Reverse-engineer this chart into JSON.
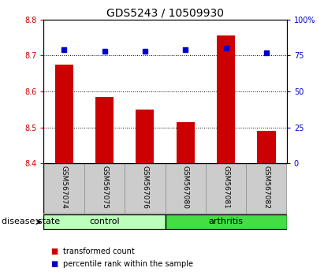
{
  "title": "GDS5243 / 10509930",
  "samples": [
    "GSM567074",
    "GSM567075",
    "GSM567076",
    "GSM567080",
    "GSM567081",
    "GSM567082"
  ],
  "transformed_counts": [
    8.675,
    8.585,
    8.55,
    8.515,
    8.755,
    8.49
  ],
  "percentile_ranks": [
    79,
    78,
    78,
    79,
    80,
    77
  ],
  "ylim_left": [
    8.4,
    8.8
  ],
  "ylim_right": [
    0,
    100
  ],
  "yticks_left": [
    8.4,
    8.5,
    8.6,
    8.7,
    8.8
  ],
  "yticks_right": [
    0,
    25,
    50,
    75,
    100
  ],
  "ytick_labels_right": [
    "0",
    "25",
    "50",
    "75",
    "100%"
  ],
  "bar_color": "#cc0000",
  "dot_color": "#0000cc",
  "bar_bottom": 8.4,
  "groups": [
    {
      "label": "control",
      "n": 3,
      "color": "#bbffbb"
    },
    {
      "label": "arthritis",
      "n": 3,
      "color": "#44dd44"
    }
  ],
  "disease_state_label": "disease state",
  "legend_items": [
    {
      "label": "transformed count",
      "color": "#cc0000"
    },
    {
      "label": "percentile rank within the sample",
      "color": "#0000cc"
    }
  ],
  "title_fontsize": 10,
  "tick_label_fontsize": 7,
  "sample_label_fontsize": 6.5,
  "group_label_fontsize": 8,
  "legend_fontsize": 7,
  "background_color": "#ffffff",
  "sample_box_color": "#cccccc"
}
